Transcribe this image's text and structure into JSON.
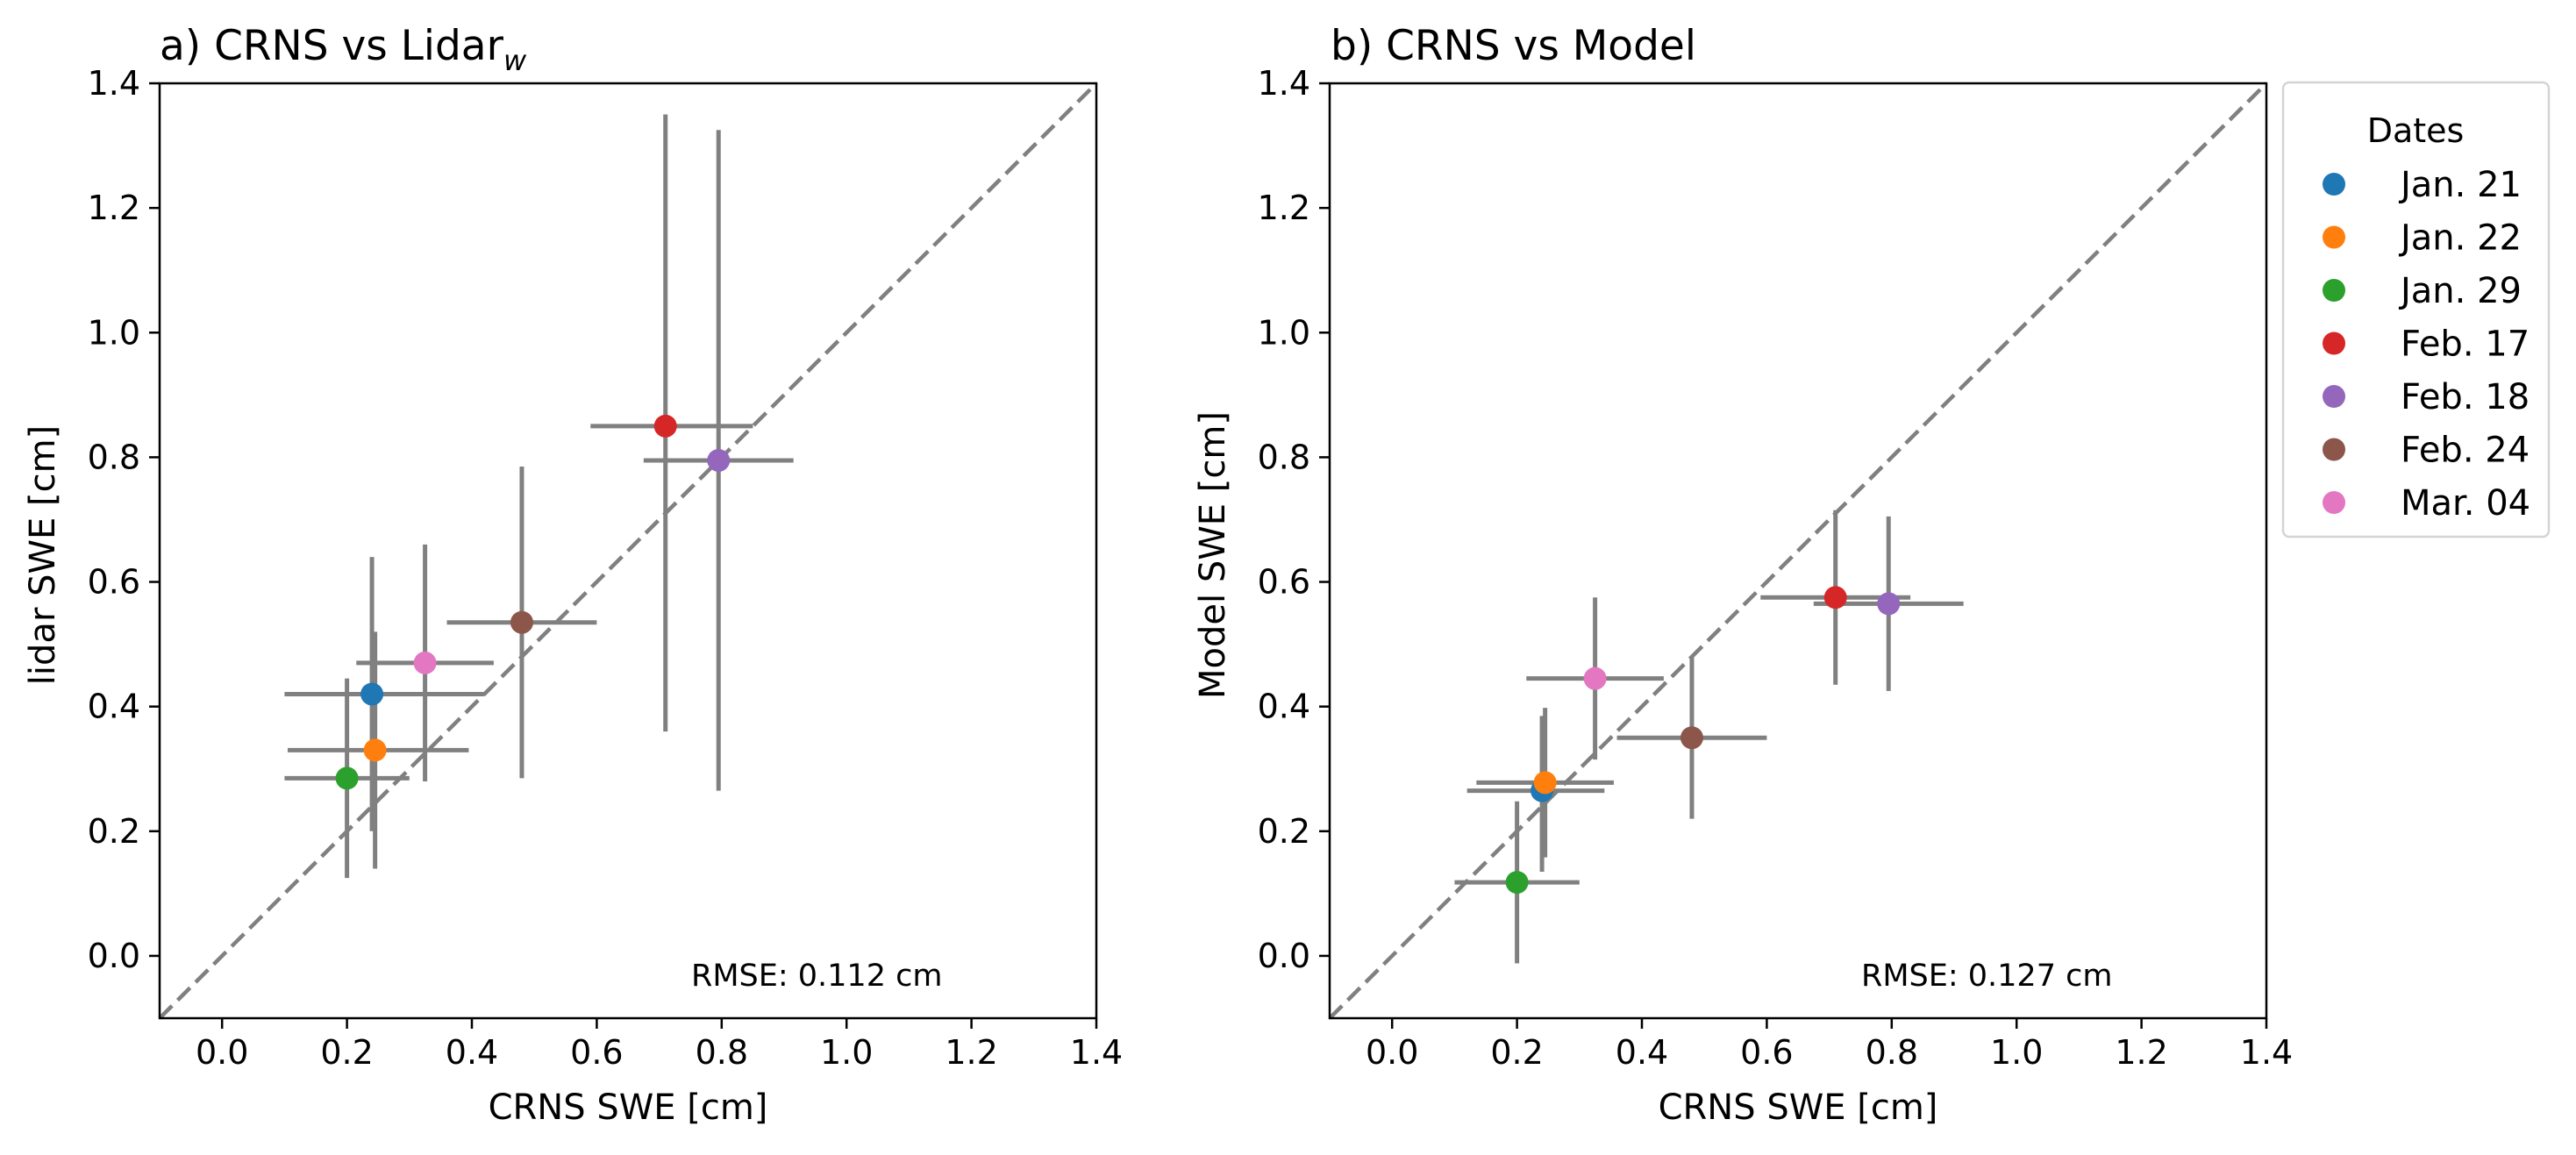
{
  "figure": {
    "legend": {
      "title": "Dates",
      "placement": "outside-right"
    }
  },
  "chart_data": [
    {
      "type": "scatter",
      "title": "a) CRNS vs Lidar",
      "title_subscript": "w",
      "xlabel": "CRNS SWE [cm]",
      "ylabel": "lidar SWE [cm]",
      "xlim": [
        -0.1,
        1.4
      ],
      "ylim": [
        -0.1,
        1.4
      ],
      "xticks": [
        0.0,
        0.2,
        0.4,
        0.6,
        0.8,
        1.0,
        1.2,
        1.4
      ],
      "yticks": [
        0.0,
        0.2,
        0.4,
        0.6,
        0.8,
        1.0,
        1.2,
        1.4
      ],
      "x_tick_labels": [
        "0.0",
        "0.2",
        "0.4",
        "0.6",
        "0.8",
        "1.0",
        "1.2",
        "1.4"
      ],
      "y_tick_labels": [
        "0.0",
        "0.2",
        "0.4",
        "0.6",
        "0.8",
        "1.0",
        "1.2",
        "1.4"
      ],
      "grid": false,
      "reference_line": "1:1 dashed",
      "annotation": "RMSE: 0.112 cm",
      "series": [
        {
          "name": "Jan. 21",
          "color": "#1f77b4",
          "x": 0.24,
          "y": 0.42,
          "xerr": [
            0.14,
            0.18
          ],
          "yerr": [
            0.22,
            0.22
          ]
        },
        {
          "name": "Jan. 22",
          "color": "#ff7f0e",
          "x": 0.245,
          "y": 0.33,
          "xerr": [
            0.14,
            0.15
          ],
          "yerr": [
            0.19,
            0.19
          ]
        },
        {
          "name": "Jan. 29",
          "color": "#2ca02c",
          "x": 0.2,
          "y": 0.285,
          "xerr": [
            0.1,
            0.1
          ],
          "yerr": [
            0.16,
            0.16
          ]
        },
        {
          "name": "Feb. 17",
          "color": "#d62728",
          "x": 0.71,
          "y": 0.85,
          "xerr": [
            0.12,
            0.14
          ],
          "yerr": [
            0.49,
            0.5
          ]
        },
        {
          "name": "Feb. 18",
          "color": "#9467bd",
          "x": 0.795,
          "y": 0.795,
          "xerr": [
            0.12,
            0.12
          ],
          "yerr": [
            0.53,
            0.53
          ]
        },
        {
          "name": "Feb. 24",
          "color": "#8c564b",
          "x": 0.48,
          "y": 0.535,
          "xerr": [
            0.12,
            0.12
          ],
          "yerr": [
            0.25,
            0.25
          ]
        },
        {
          "name": "Mar. 04",
          "color": "#e377c2",
          "x": 0.325,
          "y": 0.47,
          "xerr": [
            0.11,
            0.11
          ],
          "yerr": [
            0.19,
            0.19
          ]
        }
      ]
    },
    {
      "type": "scatter",
      "title": "b) CRNS vs Model",
      "xlabel": "CRNS SWE [cm]",
      "ylabel": "Model SWE [cm]",
      "xlim": [
        -0.1,
        1.4
      ],
      "ylim": [
        -0.1,
        1.4
      ],
      "xticks": [
        0.0,
        0.2,
        0.4,
        0.6,
        0.8,
        1.0,
        1.2,
        1.4
      ],
      "yticks": [
        0.0,
        0.2,
        0.4,
        0.6,
        0.8,
        1.0,
        1.2,
        1.4
      ],
      "x_tick_labels": [
        "0.0",
        "0.2",
        "0.4",
        "0.6",
        "0.8",
        "1.0",
        "1.2",
        "1.4"
      ],
      "y_tick_labels": [
        "0.0",
        "0.2",
        "0.4",
        "0.6",
        "0.8",
        "1.0",
        "1.2",
        "1.4"
      ],
      "grid": false,
      "reference_line": "1:1 dashed",
      "annotation": "RMSE: 0.127 cm",
      "series": [
        {
          "name": "Jan. 21",
          "color": "#1f77b4",
          "x": 0.24,
          "y": 0.265,
          "xerr": [
            0.12,
            0.1
          ],
          "yerr": [
            0.13,
            0.12
          ]
        },
        {
          "name": "Jan. 22",
          "color": "#ff7f0e",
          "x": 0.245,
          "y": 0.278,
          "xerr": [
            0.11,
            0.11
          ],
          "yerr": [
            0.12,
            0.12
          ]
        },
        {
          "name": "Jan. 29",
          "color": "#2ca02c",
          "x": 0.2,
          "y": 0.118,
          "xerr": [
            0.1,
            0.1
          ],
          "yerr": [
            0.13,
            0.13
          ]
        },
        {
          "name": "Feb. 17",
          "color": "#d62728",
          "x": 0.71,
          "y": 0.575,
          "xerr": [
            0.12,
            0.12
          ],
          "yerr": [
            0.14,
            0.14
          ]
        },
        {
          "name": "Feb. 18",
          "color": "#9467bd",
          "x": 0.795,
          "y": 0.565,
          "xerr": [
            0.12,
            0.12
          ],
          "yerr": [
            0.14,
            0.14
          ]
        },
        {
          "name": "Feb. 24",
          "color": "#8c564b",
          "x": 0.48,
          "y": 0.35,
          "xerr": [
            0.12,
            0.12
          ],
          "yerr": [
            0.13,
            0.13
          ]
        },
        {
          "name": "Mar. 04",
          "color": "#e377c2",
          "x": 0.325,
          "y": 0.445,
          "xerr": [
            0.11,
            0.11
          ],
          "yerr": [
            0.13,
            0.13
          ]
        }
      ]
    }
  ]
}
